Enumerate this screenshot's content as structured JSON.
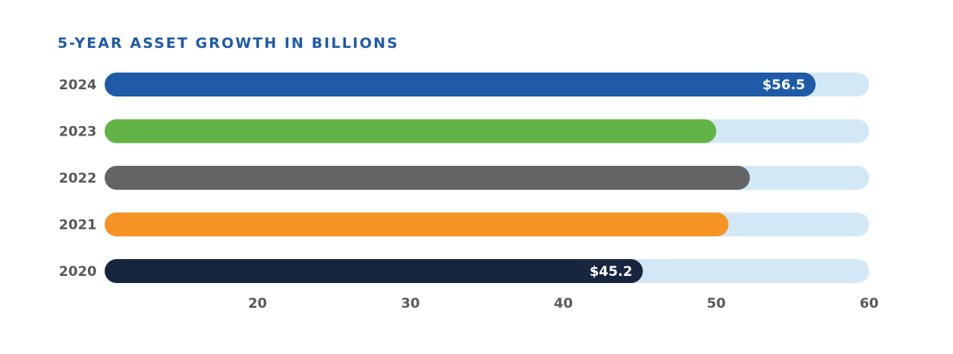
{
  "chart_data": {
    "type": "bar",
    "orientation": "horizontal",
    "title": "5-YEAR ASSET GROWTH IN BILLIONS",
    "xlabel": "",
    "ylabel": "",
    "xlim": [
      10,
      60
    ],
    "x_ticks": [
      "20",
      "30",
      "40",
      "50",
      "60"
    ],
    "x_tick_values": [
      20,
      30,
      40,
      50,
      60
    ],
    "grid": false,
    "track_color": "#d3e8f6",
    "bars": [
      {
        "category": "2024",
        "value": 56.5,
        "label": "$56.5",
        "color": "#1f5ba6"
      },
      {
        "category": "2023",
        "value": 50.0,
        "label": "",
        "color": "#62b446"
      },
      {
        "category": "2022",
        "value": 52.2,
        "label": "",
        "color": "#636466"
      },
      {
        "category": "2021",
        "value": 50.8,
        "label": "",
        "color": "#f59324"
      },
      {
        "category": "2020",
        "value": 45.2,
        "label": "$45.2",
        "color": "#18253f"
      }
    ]
  }
}
